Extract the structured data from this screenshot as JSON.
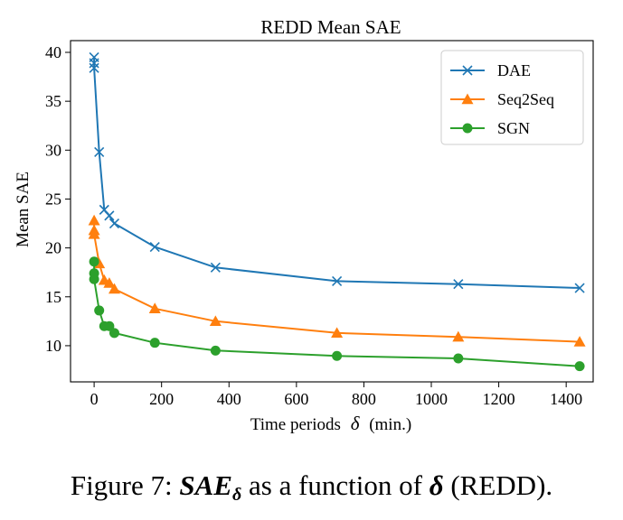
{
  "chart_data": {
    "type": "line",
    "title": "REDD Mean SAE",
    "xlabel": "Time periods",
    "xlabel_symbol": "δ",
    "xlabel_unit": "(min.)",
    "ylabel": "Mean SAE",
    "xlim": [
      -70,
      1480
    ],
    "ylim": [
      6.3,
      41.2
    ],
    "xticks": [
      0,
      200,
      400,
      600,
      800,
      1000,
      1200,
      1400
    ],
    "yticks": [
      10,
      15,
      20,
      25,
      30,
      35,
      40
    ],
    "grid": false,
    "legend_position": "top-right",
    "series": [
      {
        "name": "DAE",
        "color": "#1f77b4",
        "marker": "x",
        "points": [
          [
            0,
            39.5
          ],
          [
            0,
            38.9
          ],
          [
            0,
            38.4
          ],
          [
            15,
            29.8
          ],
          [
            30,
            23.9
          ],
          [
            45,
            23.3
          ],
          [
            60,
            22.5
          ],
          [
            180,
            20.1
          ],
          [
            360,
            18.0
          ],
          [
            720,
            16.6
          ],
          [
            1080,
            16.3
          ],
          [
            1440,
            15.9
          ]
        ]
      },
      {
        "name": "Seq2Seq",
        "color": "#ff7f0e",
        "marker": "triangle",
        "points": [
          [
            0,
            22.8
          ],
          [
            0,
            21.8
          ],
          [
            0,
            21.4
          ],
          [
            15,
            18.4
          ],
          [
            30,
            16.7
          ],
          [
            45,
            16.4
          ],
          [
            60,
            15.8
          ],
          [
            180,
            13.8
          ],
          [
            360,
            12.5
          ],
          [
            720,
            11.3
          ],
          [
            1080,
            10.9
          ],
          [
            1440,
            10.4
          ]
        ]
      },
      {
        "name": "SGN",
        "color": "#2ca02c",
        "marker": "circle",
        "points": [
          [
            0,
            18.6
          ],
          [
            0,
            17.4
          ],
          [
            0,
            16.8
          ],
          [
            15,
            13.6
          ],
          [
            30,
            12.0
          ],
          [
            45,
            12.0
          ],
          [
            60,
            11.3
          ],
          [
            180,
            10.3
          ],
          [
            360,
            9.5
          ],
          [
            720,
            8.95
          ],
          [
            1080,
            8.7
          ],
          [
            1440,
            7.9
          ]
        ]
      }
    ]
  },
  "caption": {
    "prefix": "Figure 7:",
    "math_main": "SAE",
    "math_sub": "δ",
    "middle": "as a function of",
    "math_delta": "δ",
    "suffix": "(REDD)."
  }
}
